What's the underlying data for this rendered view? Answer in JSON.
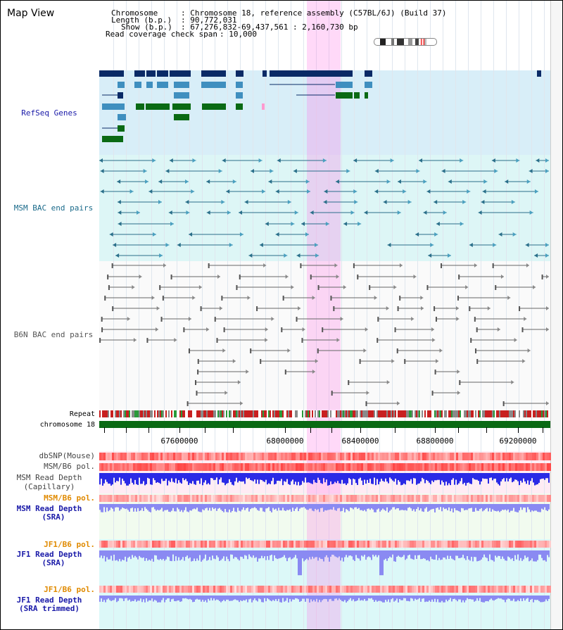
{
  "app": {
    "title": "Map View"
  },
  "header": {
    "chromosome_label": "Chromosome",
    "chromosome_value": ": Chromosome 18, reference assembly (C57BL/6J) (Build 37)",
    "length_label": "Length (b.p.)",
    "length_value": ": 90,772,031",
    "show_label": "Show (b.p.)",
    "show_value": ": 67,276,832-69,437,561 : 2,160,730 bp",
    "coverage_label": "Read coverage check span",
    "coverage_value": ": 10,000"
  },
  "tracks": {
    "refseq": "RefSeq Genes",
    "msm_bac": "MSM BAC end pairs",
    "b6n_bac": "B6N BAC end pairs",
    "repeat": "Repeat",
    "chromosome": "chromosome 18",
    "dbsnp": "dbSNP(Mouse)",
    "msm_b6_pol_1": "MSM/B6 pol.",
    "msm_depth_cap_1": "MSM Read Depth",
    "msm_depth_cap_2": "(Capillary)",
    "msm_b6_pol_2": "MSM/B6 pol.",
    "msm_depth_sra_1": "MSM Read Depth",
    "msm_depth_sra_2": "(SRA)",
    "jf1_b6_pol_1": "JF1/B6 pol.",
    "jf1_depth_sra_1": "JF1 Read Depth",
    "jf1_depth_sra_2": "(SRA)",
    "jf1_b6_pol_2": "JF1/B6 pol.",
    "jf1_depth_trim_1": "JF1 Read Depth",
    "jf1_depth_trim_2": "(SRA trimmed)"
  },
  "axis": {
    "ticks": [
      "67600000",
      "68000000",
      "68400000",
      "68800000",
      "69200000"
    ]
  },
  "colors": {
    "refseq_bg": "#d8eef8",
    "msm_bg": "#ddf6f6",
    "gene_dark": "#0a2a66",
    "gene_mid": "#3f8fbf",
    "gene_green": "#0a6a14",
    "msm_line": "#2a6f8a",
    "b6n_line": "#666666",
    "highlight": "#ff9bee",
    "depth_blue": "#2a2ae6",
    "depth_light": "#8a8af2",
    "pol_red": "#ff5050",
    "label_blue": "#1a1aa8",
    "label_orange": "#e08a00",
    "label_teal": "#1a6a8a"
  }
}
